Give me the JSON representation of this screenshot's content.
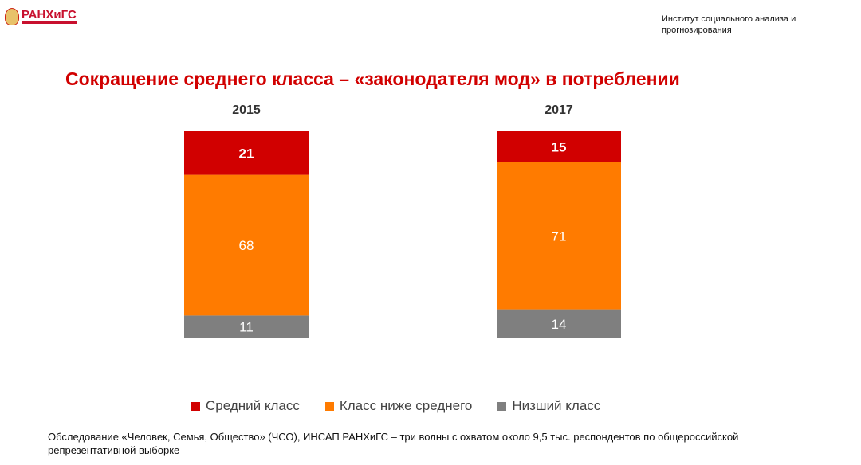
{
  "header": {
    "logo_text": "РАНХиГС",
    "institute": "Институт социального анализа и прогнозирования"
  },
  "chart_data": {
    "type": "bar",
    "stacked": true,
    "title": "Сокращение среднего класса – «законодателя мод» в потреблении",
    "categories": [
      "2015",
      "2017"
    ],
    "series": [
      {
        "name": "Низший класс",
        "values": [
          11,
          14
        ],
        "color": "#7f7f7f"
      },
      {
        "name": "Класс ниже среднего",
        "values": [
          68,
          71
        ],
        "color": "#ff7b00"
      },
      {
        "name": "Средний класс",
        "values": [
          21,
          15
        ],
        "color": "#d10000"
      }
    ],
    "legend_order": [
      "Средний класс",
      "Класс ниже среднего",
      "Низший класс"
    ],
    "legend_position": "bottom"
  },
  "footnote": "Обследование «Человек, Семья, Общество» (ЧСО), ИНСАП РАНХиГС – три волны с охватом около 9,5 тыс. респондентов по общероссийской репрезентативной выборке"
}
